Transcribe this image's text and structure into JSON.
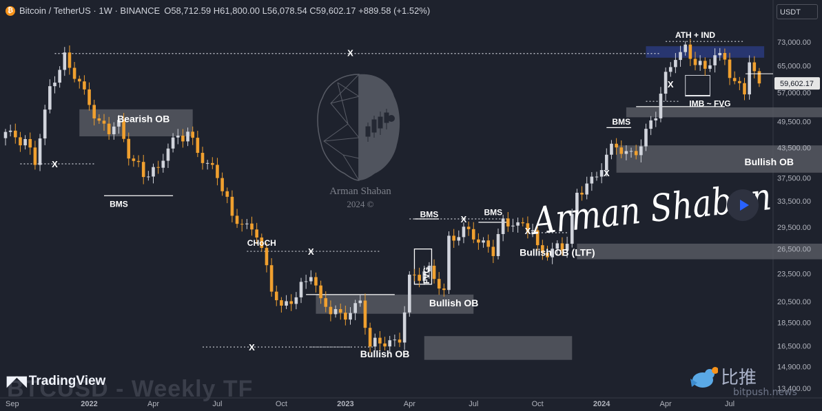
{
  "header": {
    "coin_icon": "bitcoin-icon",
    "title": "Bitcoin / TetherUS · 1W · BINANCE",
    "ohlc": "O58,712.59 H61,800.00 L56,078.54 C59,602.17 +889.58 (+1.52%)"
  },
  "price_unit": "USDT",
  "brand": {
    "name": "TradingView",
    "watermark": "BTCUSD - Weekly TF"
  },
  "author": {
    "signature": "Arman Shaban",
    "caption_1": "Arman Shaban",
    "caption_2": "2024 ©"
  },
  "source_watermark": {
    "chinese": "比推",
    "site": "bitpush.news",
    "icon": "bird-icon"
  },
  "play_icon": "play-icon",
  "colors": {
    "background": "#1e222d",
    "up": "#d1d4dc",
    "down": "#f0a02f",
    "zone": "#5d6068",
    "ath_zone": "#2a3a7c",
    "price_tag": "#e6e6e6"
  },
  "chart_data": {
    "type": "candlestick",
    "title": "Bitcoin / TetherUS · 1W · BINANCE",
    "timeframe": "1W",
    "last_close": 59602.17,
    "last_close_label": "59,602.17",
    "y_ticks": [
      73000,
      65000,
      57000,
      49500,
      43500,
      37500,
      33500,
      29500,
      26500,
      23500,
      20500,
      18500,
      16500,
      14900,
      13400
    ],
    "y_tick_labels": [
      "73,000.00",
      "65,000.00",
      "57,000.00",
      "49,500.00",
      "43,500.00",
      "37,500.00",
      "33,500.00",
      "29,500.00",
      "26,500.00",
      "23,500.00",
      "20,500.00",
      "18,500.00",
      "16,500.00",
      "14,900.00",
      "13,400.00"
    ],
    "x_ticks": [
      "Sep",
      "2022",
      "Apr",
      "Jul",
      "Oct",
      "2023",
      "Apr",
      "Jul",
      "Oct",
      "2024",
      "Apr",
      "Jul"
    ],
    "y_scale": "log",
    "anchor_closes": [
      [
        0,
        47000
      ],
      [
        4,
        45000
      ],
      [
        6,
        41000
      ],
      [
        9,
        58000
      ],
      [
        12,
        67000
      ],
      [
        14,
        62000
      ],
      [
        16,
        57000
      ],
      [
        19,
        49000
      ],
      [
        21,
        48000
      ],
      [
        23,
        49000
      ],
      [
        25,
        42000
      ],
      [
        28,
        38000
      ],
      [
        31,
        39000
      ],
      [
        33,
        44000
      ],
      [
        35,
        46000
      ],
      [
        37,
        47000
      ],
      [
        40,
        41000
      ],
      [
        43,
        38000
      ],
      [
        46,
        31000
      ],
      [
        49,
        29500
      ],
      [
        51,
        29000
      ],
      [
        54,
        22000
      ],
      [
        56,
        19800
      ],
      [
        59,
        21000
      ],
      [
        62,
        23500
      ],
      [
        64,
        20500
      ],
      [
        66,
        19800
      ],
      [
        68,
        19200
      ],
      [
        70,
        19500
      ],
      [
        72,
        20500
      ],
      [
        74,
        16400
      ],
      [
        76,
        16800
      ],
      [
        78,
        16600
      ],
      [
        80,
        17000
      ],
      [
        82,
        23000
      ],
      [
        84,
        23500
      ],
      [
        86,
        24000
      ],
      [
        88,
        22200
      ],
      [
        89,
        21500
      ],
      [
        90,
        27500
      ],
      [
        92,
        28400
      ],
      [
        94,
        29000
      ],
      [
        96,
        27500
      ],
      [
        99,
        26500
      ],
      [
        101,
        30300
      ],
      [
        103,
        30100
      ],
      [
        105,
        29500
      ],
      [
        107,
        29200
      ],
      [
        108,
        26100
      ],
      [
        110,
        25900
      ],
      [
        112,
        26800
      ],
      [
        113,
        26500
      ],
      [
        114,
        28000
      ],
      [
        116,
        34500
      ],
      [
        118,
        36800
      ],
      [
        120,
        37500
      ],
      [
        122,
        42000
      ],
      [
        124,
        43800
      ],
      [
        126,
        42000
      ],
      [
        128,
        42500
      ],
      [
        130,
        47000
      ],
      [
        132,
        52000
      ],
      [
        134,
        62000
      ],
      [
        136,
        68000
      ],
      [
        138,
        70000
      ],
      [
        140,
        66000
      ],
      [
        142,
        63500
      ],
      [
        144,
        69000
      ],
      [
        146,
        67000
      ],
      [
        148,
        60000
      ],
      [
        150,
        57500
      ],
      [
        151,
        67000
      ],
      [
        152,
        62500
      ],
      [
        153,
        59602
      ]
    ],
    "annotations": [
      {
        "text": "Bearish OB",
        "type": "order-block"
      },
      {
        "text": "BMS",
        "type": "structure"
      },
      {
        "text": "CHoCH",
        "type": "structure"
      },
      {
        "text": "Bullish OB",
        "type": "order-block"
      },
      {
        "text": "FVG",
        "type": "gap"
      },
      {
        "text": "BMS",
        "type": "structure"
      },
      {
        "text": "BMS",
        "type": "structure"
      },
      {
        "text": "Bullish OB (LTF)",
        "type": "order-block"
      },
      {
        "text": "Bullish OB",
        "type": "order-block"
      },
      {
        "text": "Bullish OB",
        "type": "order-block"
      },
      {
        "text": "BMS",
        "type": "structure"
      },
      {
        "text": "IMB ~ FVG",
        "type": "gap"
      },
      {
        "text": "ATH + IND",
        "type": "level"
      },
      {
        "text": "X",
        "type": "marker"
      }
    ]
  }
}
